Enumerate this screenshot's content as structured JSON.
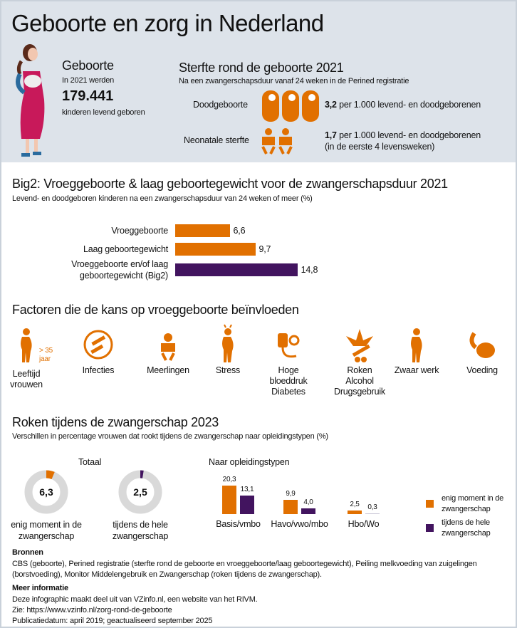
{
  "title": "Geboorte en zorg in Nederland",
  "colors": {
    "orange": "#e17000",
    "purple": "#42145f",
    "grey": "#d9d9d9",
    "header_bg": "#dde3ea"
  },
  "birth": {
    "heading": "Geboorte",
    "intro": "In 2021 werden",
    "count": "179.441",
    "caption": "kinderen levend geboren",
    "icon": "pregnant-woman-holding-baby-icon"
  },
  "mortality": {
    "heading": "Sterfte rond de geboorte 2021",
    "subtitle": "Na een zwangerschapsduur vanaf 24 weken in de Perined registratie",
    "stillbirth": {
      "label": "Doodgeboorte",
      "value": "3,2",
      "text": "per 1.000 levend- en doodgeborenen",
      "icon": "swaddled-baby-icon"
    },
    "neonatal": {
      "label": "Neonatale sterfte",
      "value": "1,7",
      "text": "per 1.000 levend- en doodgeborenen",
      "text2": "(in de eerste 4 levensweken)",
      "icon": "baby-icon"
    }
  },
  "big2": {
    "heading": "Big2: Vroeggeboorte & laag geboortegewicht voor de zwangerschapsduur 2021",
    "subtitle": "Levend- en doodgeboren kinderen na een zwangerschapsduur van 24 weken of meer (%)"
  },
  "factors": {
    "heading": "Factoren die de kans op vroeggeboorte beïnvloeden",
    "age_badge": [
      "> 35",
      "jaar"
    ],
    "items": [
      {
        "lines": [
          "Leeftijd",
          "vrouwen"
        ],
        "icon": "pregnant-woman-icon"
      },
      {
        "lines": [
          "Infecties"
        ],
        "icon": "bacteria-icon"
      },
      {
        "lines": [
          "Meerlingen"
        ],
        "icon": "baby-icon"
      },
      {
        "lines": [
          "Stress"
        ],
        "icon": "stressed-pregnant-woman-icon"
      },
      {
        "lines": [
          "Hoge",
          "bloeddruk",
          "Diabetes"
        ],
        "icon": "blood-pressure-icon"
      },
      {
        "lines": [
          "Roken",
          "Alcohol",
          "Drugsgebruik"
        ],
        "icon": "cannabis-syringe-icon"
      },
      {
        "lines": [
          "Zwaar werk"
        ],
        "icon": "working-woman-icon"
      },
      {
        "lines": [
          "Voeding"
        ],
        "icon": "sausage-food-icon"
      }
    ]
  },
  "smoking": {
    "heading": "Roken tijdens de zwangerschap 2023",
    "subtitle": "Verschillen in percentage vrouwen dat rookt tijdens de zwangerschap naar opleidingstypen (%)",
    "total_label": "Totaal",
    "edu_label": "Naar opleidingstypen",
    "legend": [
      {
        "lines": [
          "enig moment in de",
          "zwangerschap"
        ],
        "color": "#e17000"
      },
      {
        "lines": [
          "tijdens de hele",
          "zwangerschap"
        ],
        "color": "#42145f"
      }
    ]
  },
  "chart_data": [
    {
      "type": "bar",
      "orientation": "horizontal",
      "categories": [
        "Vroeggeboorte",
        "Laag geboortegewicht",
        "Vroeggeboorte en/of laag geboortegewicht (Big2)"
      ],
      "values": [
        6.6,
        9.7,
        14.8
      ],
      "value_labels": [
        "6,6",
        "9,7",
        "14,8"
      ],
      "colors": [
        "#e17000",
        "#e17000",
        "#42145f"
      ]
    },
    {
      "type": "pie",
      "variant": "donut",
      "title": "Totaal",
      "slices": [
        {
          "label": "enig moment in de zwangerschap",
          "value": 6.3,
          "value_label": "6,3",
          "color": "#e17000"
        },
        {
          "label": "tijdens de hele zwangerschap",
          "value": 2.5,
          "value_label": "2,5",
          "color": "#42145f"
        }
      ]
    },
    {
      "type": "bar",
      "title": "Naar opleidingstypen",
      "categories": [
        "Basis/vmbo",
        "Havo/vwo/mbo",
        "Hbo/Wo"
      ],
      "series": [
        {
          "name": "enig moment in de zwangerschap",
          "values": [
            20.3,
            9.9,
            2.5
          ],
          "labels": [
            "20,3",
            "9,9",
            "2,5"
          ],
          "color": "#e17000"
        },
        {
          "name": "tijdens de hele zwangerschap",
          "values": [
            13.1,
            4.0,
            0.3
          ],
          "labels": [
            "13,1",
            "4,0",
            "0,3"
          ],
          "color": "#42145f"
        }
      ],
      "legend": "right"
    }
  ],
  "sources": {
    "heading": "Bronnen",
    "text1": "CBS (geboorte), Perined registratie (sterfte rond de geboorte  en vroeggeboorte/laag geboortegewicht), Peiling melkvoeding van zuigelingen",
    "text2": "(borstvoeding), Monitor Middelengebruik en Zwangerschap (roken tijdens de zwangerschap)."
  },
  "more": {
    "heading": "Meer informatie",
    "line1": "Deze infographic maakt deel uit van VZinfo.nl, een website van het RIVM.",
    "line2": "Zie: https://www.vzinfo.nl/zorg-rond-de-geboorte",
    "line3": "Publicatiedatum: april 2019; geactualiseerd september 2025"
  }
}
